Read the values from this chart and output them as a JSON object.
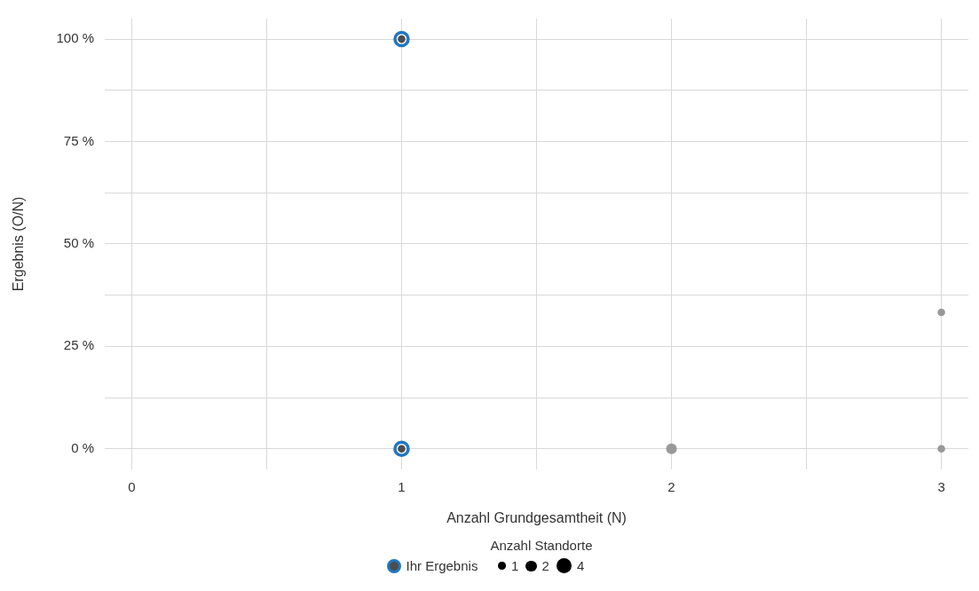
{
  "chart_data": {
    "type": "bubble",
    "xlabel": "Anzahl Grundgesamtheit (N)",
    "ylabel": "Ergebnis (O/N)",
    "legend_title": "Anzahl Standorte",
    "legend": "bottom",
    "grid": true,
    "xlim": [
      -0.1,
      3.1
    ],
    "xticks": [
      0,
      {
        "value": 0.5,
        "label": null
      },
      1,
      {
        "value": 1.5,
        "label": null
      },
      2,
      {
        "value": 2.5,
        "label": null
      },
      3
    ],
    "ylim": [
      -5,
      105
    ],
    "yticks": [
      {
        "value": 0,
        "label": "0 %"
      },
      {
        "value": 12.5,
        "label": null
      },
      {
        "value": 25,
        "label": "25 %"
      },
      {
        "value": 37.5,
        "label": null
      },
      {
        "value": 50,
        "label": "50 %"
      },
      {
        "value": 62.5,
        "label": null
      },
      {
        "value": 75,
        "label": "75 %"
      },
      {
        "value": 87.5,
        "label": null
      },
      {
        "value": 100,
        "label": "100 %"
      }
    ],
    "size_legend": [
      1,
      2,
      4
    ],
    "series": [
      {
        "x": [
          1,
          1,
          2,
          3,
          3
        ],
        "values": [
          100,
          0,
          0,
          33.3,
          0
        ],
        "sizes": [
          1,
          1,
          2,
          1,
          1
        ],
        "colors": [
          "#4d4d4d",
          "#4d4d4d",
          "#999999",
          "#999999",
          "#999999"
        ]
      },
      {
        "type": "scatter",
        "name": "Ihr Ergebnis",
        "color": "#1f78c1",
        "marker": "circle",
        "x": [
          1,
          1
        ],
        "values": [
          100,
          0
        ]
      }
    ]
  }
}
